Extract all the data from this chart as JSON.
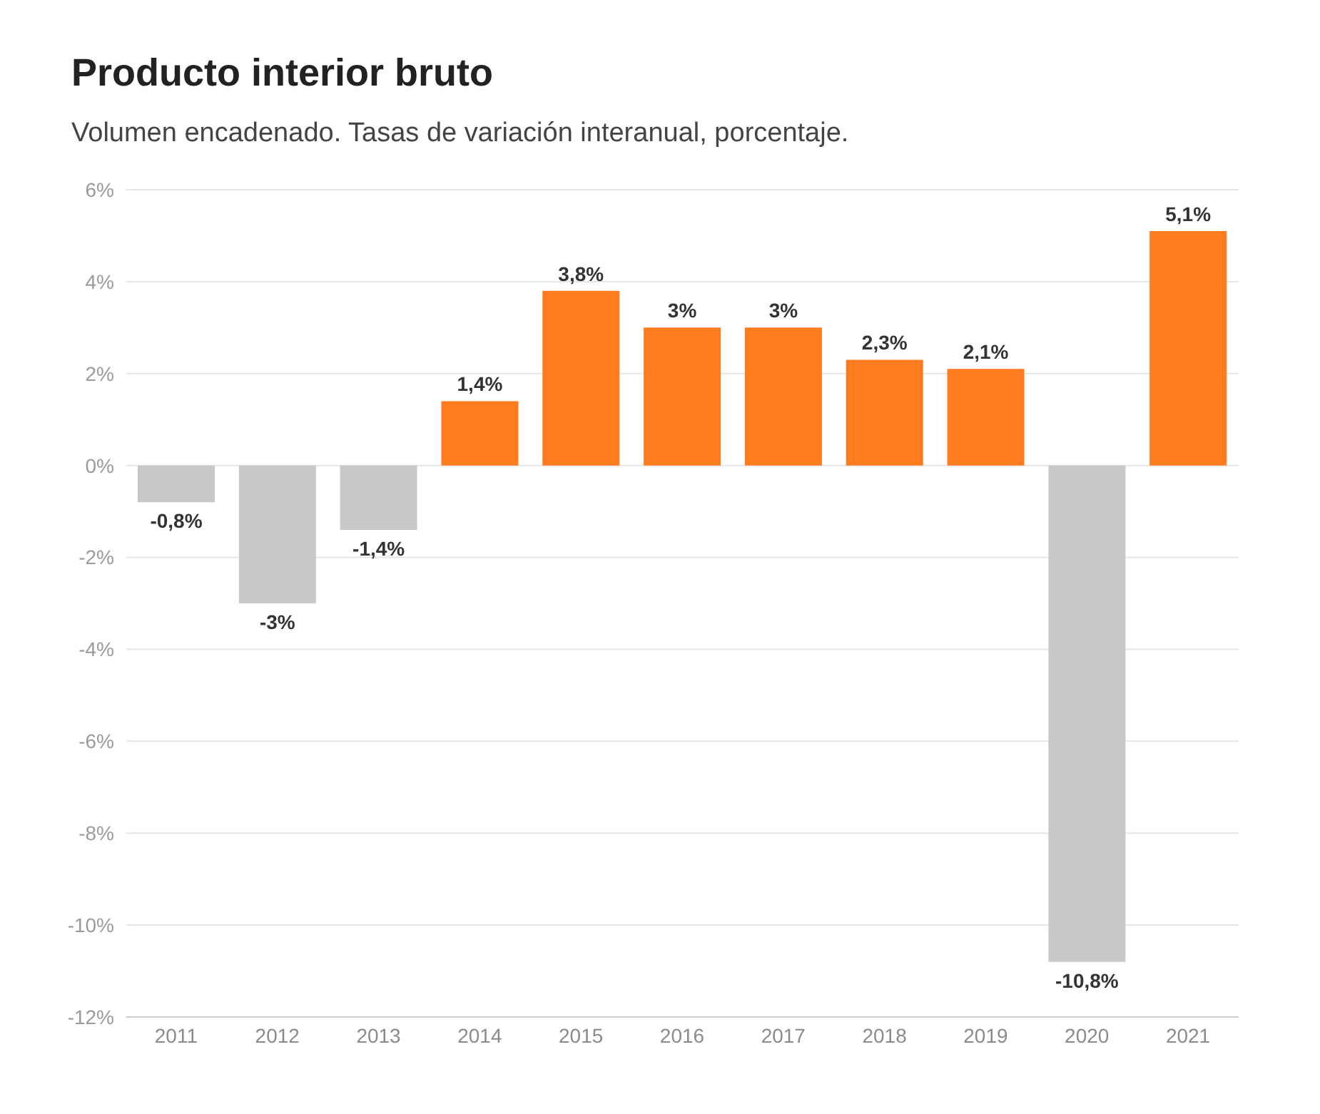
{
  "chart_data": {
    "type": "bar",
    "title": "Producto interior bruto",
    "subtitle": "Volumen encadenado. Tasas de variación interanual, porcentaje.",
    "categories": [
      "2011",
      "2012",
      "2013",
      "2014",
      "2015",
      "2016",
      "2017",
      "2018",
      "2019",
      "2020",
      "2021"
    ],
    "values": [
      -0.8,
      -3,
      -1.4,
      1.4,
      3.8,
      3,
      3,
      2.3,
      2.1,
      -10.8,
      5.1
    ],
    "colors": [
      "#c8c8c8",
      "#c8c8c8",
      "#c8c8c8",
      "#ff7b1f",
      "#ff7b1f",
      "#ff7b1f",
      "#ff7b1f",
      "#ff7b1f",
      "#ff7b1f",
      "#c8c8c8",
      "#ff7b1f"
    ],
    "value_labels": [
      "-0,8%",
      "-3%",
      "-1,4%",
      "1,4%",
      "3,8%",
      "3%",
      "3%",
      "2,3%",
      "2,1%",
      "-10,8%",
      "5,1%"
    ],
    "ylim": [
      -12,
      6
    ],
    "yticks": [
      {
        "value": -12,
        "label": "-12%"
      },
      {
        "value": -10,
        "label": "-10%"
      },
      {
        "value": -8,
        "label": "-8%"
      },
      {
        "value": -6,
        "label": "-6%"
      },
      {
        "value": -4,
        "label": "-4%"
      },
      {
        "value": -2,
        "label": "-2%"
      },
      {
        "value": 0,
        "label": "0%"
      },
      {
        "value": 2,
        "label": "2%"
      },
      {
        "value": 4,
        "label": "4%"
      },
      {
        "value": 6,
        "label": "6%"
      }
    ],
    "grid": "y",
    "legend": false
  }
}
